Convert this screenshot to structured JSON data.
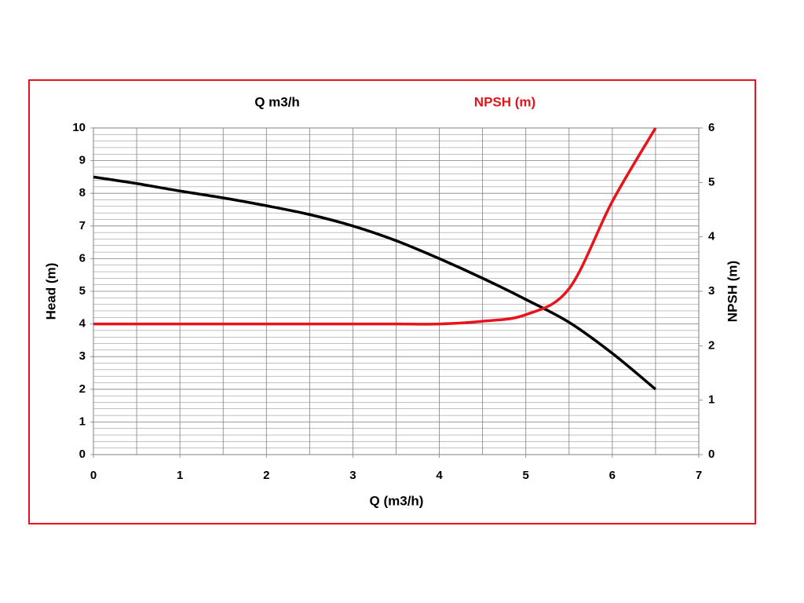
{
  "chart_data": {
    "type": "line",
    "title": "Q m3/h",
    "subtitle": "NPSH (m)",
    "x_label": "Q (m3/h)",
    "y_label": "Head (m)",
    "y2_label": "NPSH (m)",
    "x": [
      0,
      0.5,
      1,
      1.5,
      2,
      2.5,
      3,
      3.5,
      4,
      4.5,
      5,
      5.5,
      6,
      6.5
    ],
    "series": [
      {
        "name": "Head (m)",
        "color": "#000000",
        "axis": "y",
        "values": [
          8.5,
          8.3,
          8.07,
          7.86,
          7.62,
          7.35,
          7.0,
          6.55,
          6.0,
          5.4,
          4.75,
          4.05,
          3.1,
          2.0
        ]
      },
      {
        "name": "NPSH (m)",
        "color": "#e8141b",
        "axis": "y2",
        "values": [
          2.4,
          2.4,
          2.4,
          2.4,
          2.4,
          2.4,
          2.4,
          2.4,
          2.4,
          2.45,
          2.57,
          3.05,
          4.65,
          6.0
        ]
      }
    ],
    "xlim": [
      0,
      7
    ],
    "xticks": [
      0,
      1,
      2,
      3,
      4,
      5,
      6,
      7
    ],
    "ylim": [
      0,
      10
    ],
    "yticks": [
      0,
      1,
      2,
      3,
      4,
      5,
      6,
      7,
      8,
      9,
      10
    ],
    "y2lim": [
      0,
      6
    ],
    "y2ticks": [
      0,
      1,
      2,
      3,
      4,
      5,
      6
    ],
    "grid": true,
    "x_minor_divisions": 2,
    "y_minor_divisions": 5
  }
}
